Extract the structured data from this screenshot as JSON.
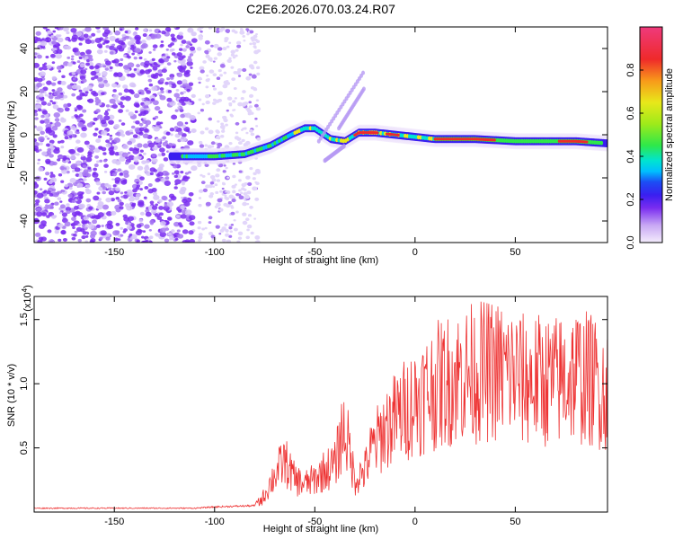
{
  "title": "C2E6.2026.070.03.24.R07",
  "chart_data": [
    {
      "type": "heatmap",
      "name": "spectrogram",
      "xlabel": "Height of straight line (km)",
      "ylabel": "Frequency (Hz)",
      "xlim": [
        -190,
        96
      ],
      "ylim": [
        -50,
        50
      ],
      "xticks": [
        -150,
        -100,
        -50,
        0,
        50
      ],
      "yticks": [
        -40,
        -20,
        0,
        20,
        40
      ],
      "xtick_labels": [
        "-150",
        "-100",
        "-50",
        "0",
        "50"
      ],
      "ytick_labels": [
        "-40",
        "-20",
        "0",
        "20",
        "40"
      ],
      "ridge": {
        "x": [
          -122,
          -100,
          -85,
          -72,
          -62,
          -55,
          -50,
          -42,
          -35,
          -28,
          -20,
          -10,
          0,
          10,
          30,
          50,
          70,
          80,
          96
        ],
        "y": [
          -10,
          -10,
          -9,
          -5,
          0,
          3,
          3,
          -2,
          -3,
          1,
          1,
          0,
          -1,
          -2,
          -2,
          -3,
          -3,
          -3,
          -4
        ]
      },
      "colorbar": {
        "label": "Normalized spectral amplitude",
        "range": [
          0,
          1
        ],
        "ticks": [
          0.0,
          0.2,
          0.4,
          0.6,
          0.8
        ],
        "tick_labels": [
          "0.0",
          "0.2",
          "0.4",
          "0.6",
          "0.8"
        ]
      }
    },
    {
      "type": "line",
      "name": "snr",
      "xlabel": "Height of straight line (km)",
      "ylabel": "SNR (10 * v/v)",
      "multiplier": "(x10",
      "multiplier_exp": "4",
      "multiplier_close": ")",
      "xlim": [
        -190,
        96
      ],
      "ylim": [
        0,
        16800
      ],
      "xticks": [
        -150,
        -100,
        -50,
        0,
        50
      ],
      "xtick_labels": [
        "-150",
        "-100",
        "-50",
        "0",
        "50"
      ],
      "yticks": [
        5000,
        10000,
        15000
      ],
      "ytick_labels": [
        "0.5",
        "1.0",
        "1.5"
      ],
      "color": "#ee3333",
      "envelope": {
        "x": [
          -190,
          -110,
          -100,
          -80,
          -76,
          -70,
          -65,
          -60,
          -55,
          -50,
          -45,
          -40,
          -36,
          -34,
          -30,
          -25,
          -22,
          -15,
          -5,
          0,
          10,
          20,
          30,
          40,
          50,
          55,
          60,
          70,
          80,
          90,
          96
        ],
        "y": [
          300,
          300,
          400,
          500,
          1500,
          4000,
          5500,
          3500,
          3000,
          3500,
          4500,
          5000,
          9000,
          8000,
          3500,
          4500,
          6500,
          9000,
          11000,
          12000,
          13500,
          14500,
          15000,
          15200,
          14800,
          14000,
          14200,
          14000,
          14800,
          14000,
          13000
        ]
      }
    }
  ]
}
